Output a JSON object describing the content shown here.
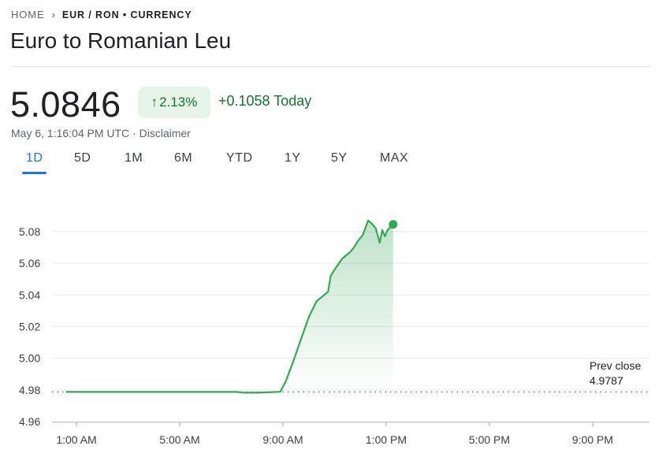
{
  "breadcrumb": {
    "home": "HOME",
    "current": "EUR / RON • CURRENCY"
  },
  "title": "Euro to Romanian Leu",
  "quote": {
    "price": "5.0846",
    "percent_change": "2.13%",
    "abs_change": "+0.1058 Today",
    "timestamp": "May 6, 1:16:04 PM UTC · ",
    "disclaimer": "Disclaimer"
  },
  "range_tabs": [
    "1D",
    "5D",
    "1M",
    "6M",
    "YTD",
    "1Y",
    "5Y",
    "MAX"
  ],
  "active_tab": "1D",
  "colors": {
    "line": "#34a853",
    "positive_text": "#137333",
    "positive_bg": "#e6f4ea",
    "accent": "#1a73e8"
  },
  "chart_data": {
    "type": "area",
    "x_unit": "hours (UTC)",
    "y_ticks": [
      "5.08",
      "5.06",
      "5.04",
      "5.02",
      "5.00",
      "4.98",
      "4.96"
    ],
    "ylim": [
      4.96,
      5.08
    ],
    "x_ticks": [
      {
        "label": "1:00 AM",
        "hour": 1
      },
      {
        "label": "5:00 AM",
        "hour": 5
      },
      {
        "label": "9:00 AM",
        "hour": 9
      },
      {
        "label": "1:00 PM",
        "hour": 13
      },
      {
        "label": "5:00 PM",
        "hour": 17
      },
      {
        "label": "9:00 PM",
        "hour": 21
      }
    ],
    "prev_close": {
      "label": "Prev close",
      "value": 4.9787,
      "text": "4.9787"
    },
    "grid": "horizontal",
    "series": [
      {
        "x": [
          0.6,
          2,
          4,
          6,
          7.2,
          7.5,
          8,
          8.6,
          8.9,
          9.1,
          9.4,
          9.7,
          10.0,
          10.3,
          10.6,
          10.75,
          10.85,
          11.0,
          11.3,
          11.6,
          11.75,
          11.9,
          12.1,
          12.3,
          12.45,
          12.6,
          12.75,
          12.85,
          12.95,
          13.05,
          13.27
        ],
        "y": [
          4.9787,
          4.9787,
          4.9787,
          4.9787,
          4.9787,
          4.9782,
          4.9782,
          4.9786,
          4.9788,
          4.985,
          4.998,
          5.012,
          5.026,
          5.036,
          5.04,
          5.042,
          5.052,
          5.056,
          5.063,
          5.067,
          5.07,
          5.074,
          5.078,
          5.087,
          5.085,
          5.082,
          5.073,
          5.081,
          5.077,
          5.081,
          5.0846
        ]
      }
    ]
  }
}
